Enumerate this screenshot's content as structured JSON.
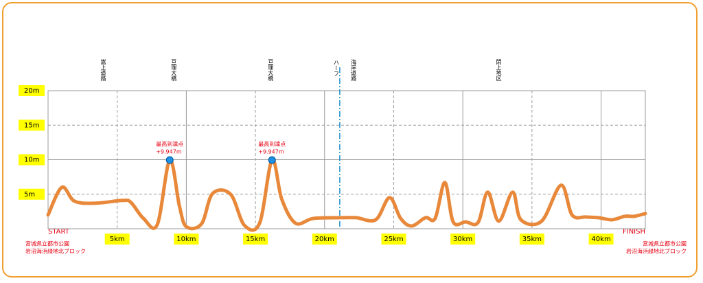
{
  "chart_data": {
    "type": "line",
    "color": "#e8883a",
    "x": [
      0,
      1.0,
      1.9,
      3.4,
      5.4,
      6.0,
      6.9,
      7.9,
      8.8,
      9.5,
      10.0,
      11.1,
      11.9,
      13.2,
      14.2,
      15.3,
      16.2,
      16.9,
      17.9,
      19.2,
      21.3,
      22.3,
      23.7,
      24.7,
      25.5,
      26.3,
      27.3,
      28.0,
      28.7,
      29.3,
      30.2,
      31.1,
      31.8,
      32.6,
      33.6,
      34.2,
      35.7,
      37.1,
      37.9,
      38.9,
      39.8,
      40.8,
      41.7,
      42.4,
      43.2
    ],
    "values": [
      2.0,
      6.0,
      4.0,
      3.7,
      4.1,
      3.8,
      1.5,
      0.6,
      9.947,
      3.3,
      0.3,
      0.7,
      5.1,
      5.0,
      0.5,
      0.8,
      9.947,
      4.3,
      0.8,
      1.5,
      1.6,
      1.6,
      1.3,
      4.5,
      1.5,
      0.4,
      1.6,
      1.5,
      6.7,
      1.0,
      1.0,
      0.9,
      5.3,
      1.1,
      5.3,
      1.3,
      1.1,
      6.3,
      2.0,
      1.7,
      1.6,
      1.3,
      1.8,
      1.8,
      2.2
    ],
    "xlim": [
      0,
      43.2
    ],
    "ylim": [
      0,
      20
    ],
    "xticks": [
      {
        "value": 5,
        "label": "5km"
      },
      {
        "value": 10,
        "label": "10km"
      },
      {
        "value": 15,
        "label": "15km"
      },
      {
        "value": 20,
        "label": "20km"
      },
      {
        "value": 25,
        "label": "25km"
      },
      {
        "value": 30,
        "label": "30km"
      },
      {
        "value": 35,
        "label": "35km"
      },
      {
        "value": 40,
        "label": "40km"
      }
    ],
    "yticks": [
      {
        "value": 5,
        "label": "5m"
      },
      {
        "value": 10,
        "label": "10m"
      },
      {
        "value": 15,
        "label": "15m"
      },
      {
        "value": 20,
        "label": "20m"
      }
    ],
    "grid": true,
    "peaks": [
      {
        "x": 8.8,
        "y": 9.947,
        "label": "最高到達点",
        "value_label": "+9.947m"
      },
      {
        "x": 16.2,
        "y": 9.947,
        "label": "最高到達点",
        "value_label": "+9.947m"
      }
    ],
    "half": {
      "x": 21.0975,
      "label": "ハーフ"
    },
    "annotations": [
      {
        "x": 4.0,
        "text": "嵩上道路"
      },
      {
        "x": 9.1,
        "text": "亘理大橋"
      },
      {
        "x": 16.1,
        "text": "亘理大橋"
      },
      {
        "x": 22.1,
        "text": "海岸道路"
      },
      {
        "x": 32.6,
        "text": "閖上地区"
      }
    ],
    "start": {
      "label": "START",
      "place": [
        "宮城県立都市公園",
        "岩沼海浜緑地北ブロック"
      ]
    },
    "finish": {
      "label": "FINISH",
      "place": [
        "宮城県立都市公園",
        "岩沼海浜緑地北ブロック"
      ]
    }
  }
}
